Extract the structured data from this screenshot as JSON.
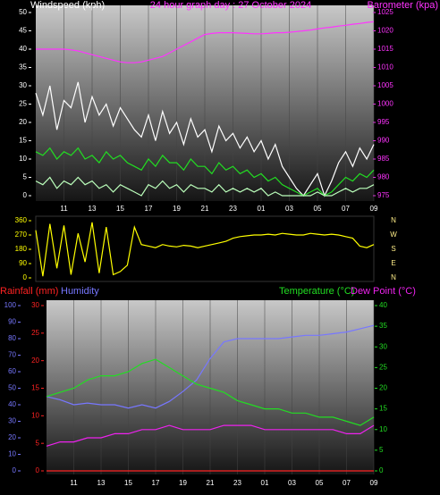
{
  "chart_data": [
    {
      "type": "line",
      "title": "24 hour graph day : 27 October 2024",
      "y_label": "Windspeed (kph)",
      "y2_label": "Barometer (kpa)",
      "y_color": "#ffffff",
      "y2_color": "#ff33ff",
      "x": [
        0,
        0.5,
        1,
        1.5,
        2,
        2.5,
        3,
        3.5,
        4,
        4.5,
        5,
        5.5,
        6,
        6.5,
        7,
        7.5,
        8,
        8.5,
        9,
        9.5,
        10,
        10.5,
        11,
        11.5,
        12,
        12.5,
        13,
        13.5,
        14,
        14.5,
        15,
        15.5,
        16,
        16.5,
        17,
        17.5,
        18,
        18.5,
        19,
        19.5,
        20,
        20.5,
        21,
        21.5,
        22,
        22.5,
        23,
        23.5,
        24
      ],
      "xlim": [
        0,
        24
      ],
      "xticks": [
        {
          "value": 2,
          "label": "11"
        },
        {
          "value": 4,
          "label": "13"
        },
        {
          "value": 6,
          "label": "15"
        },
        {
          "value": 8,
          "label": "17"
        },
        {
          "value": 10,
          "label": "19"
        },
        {
          "value": 12,
          "label": "21"
        },
        {
          "value": 14,
          "label": "23"
        },
        {
          "value": 16,
          "label": "01"
        },
        {
          "value": 18,
          "label": "03"
        },
        {
          "value": 20,
          "label": "05"
        },
        {
          "value": 22,
          "label": "07"
        },
        {
          "value": 24,
          "label": "09"
        }
      ],
      "ylim": [
        0,
        50
      ],
      "yticks": [
        0,
        5,
        10,
        15,
        20,
        25,
        30,
        35,
        40,
        45,
        50
      ],
      "y2lim": [
        975,
        1025
      ],
      "y2ticks": [
        975,
        980,
        985,
        990,
        995,
        1000,
        1005,
        1010,
        1015,
        1020,
        1025
      ],
      "series": [
        {
          "color": "#ffffff",
          "values": [
            28,
            22,
            30,
            18,
            26,
            24,
            31,
            20,
            27,
            22,
            25,
            19,
            24,
            21,
            18,
            16,
            22,
            15,
            23,
            17,
            20,
            14,
            21,
            16,
            18,
            12,
            19,
            15,
            17,
            13,
            16,
            12,
            15,
            10,
            14,
            8,
            5,
            2,
            0,
            3,
            6,
            0,
            4,
            9,
            12,
            8,
            13,
            10,
            14
          ]
        },
        {
          "color": "#22dd22",
          "values": [
            12,
            11,
            13,
            10,
            12,
            11,
            13,
            10,
            11,
            9,
            12,
            10,
            11,
            9,
            8,
            7,
            10,
            8,
            11,
            9,
            9,
            7,
            10,
            8,
            8,
            6,
            9,
            7,
            8,
            6,
            7,
            5,
            6,
            4,
            5,
            3,
            2,
            1,
            0,
            1,
            2,
            0,
            1,
            3,
            5,
            4,
            6,
            5,
            7
          ]
        },
        {
          "color": "#bbffbb",
          "values": [
            4,
            3,
            5,
            2,
            4,
            3,
            5,
            3,
            4,
            2,
            3,
            1,
            3,
            2,
            1,
            0,
            3,
            2,
            4,
            2,
            3,
            1,
            3,
            2,
            2,
            1,
            3,
            1,
            2,
            1,
            2,
            1,
            2,
            0,
            1,
            0,
            0,
            0,
            0,
            0,
            1,
            0,
            0,
            1,
            2,
            1,
            2,
            2,
            3
          ]
        },
        {
          "color": "#ff33ff",
          "axis": "y2",
          "values": [
            1015,
            1015,
            1015,
            1015,
            1015,
            1014.8,
            1014.5,
            1014,
            1013.5,
            1013,
            1012.5,
            1012,
            1011.5,
            1011.3,
            1011.3,
            1011.5,
            1012,
            1012.5,
            1013,
            1014,
            1015,
            1016,
            1017,
            1018,
            1019,
            1019.3,
            1019.5,
            1019.5,
            1019.5,
            1019.4,
            1019.3,
            1019.2,
            1019.2,
            1019.3,
            1019.5,
            1019.5,
            1019.6,
            1019.8,
            1020,
            1020.2,
            1020.5,
            1020.8,
            1021,
            1021.3,
            1021.5,
            1021.8,
            1022,
            1022.3,
            1022.5
          ]
        }
      ]
    },
    {
      "type": "line",
      "y_color": "#ffff00",
      "y2_color": "#ffee88",
      "x": [
        0,
        0.5,
        1,
        1.5,
        2,
        2.5,
        3,
        3.5,
        4,
        4.5,
        5,
        5.5,
        6,
        6.5,
        7,
        7.5,
        8,
        8.5,
        9,
        9.5,
        10,
        10.5,
        11,
        11.5,
        12,
        12.5,
        13,
        13.5,
        14,
        14.5,
        15,
        15.5,
        16,
        16.5,
        17,
        17.5,
        18,
        18.5,
        19,
        19.5,
        20,
        20.5,
        21,
        21.5,
        22,
        22.5,
        23,
        23.5,
        24
      ],
      "xlim": [
        0,
        24
      ],
      "ylim": [
        0,
        360
      ],
      "yticks": [
        0,
        90,
        180,
        270,
        360
      ],
      "y2lim": [
        0,
        360
      ],
      "y2ticks": [
        {
          "value": 360,
          "label": "N"
        },
        {
          "value": 270,
          "label": "W"
        },
        {
          "value": 180,
          "label": "S"
        },
        {
          "value": 90,
          "label": "E"
        },
        {
          "value": 0,
          "label": "N"
        }
      ],
      "series": [
        {
          "color": "#ffff00",
          "values": [
            300,
            10,
            340,
            60,
            330,
            20,
            280,
            100,
            350,
            30,
            320,
            20,
            40,
            80,
            320,
            210,
            200,
            190,
            210,
            200,
            195,
            205,
            200,
            190,
            200,
            210,
            220,
            230,
            250,
            260,
            265,
            270,
            270,
            275,
            270,
            280,
            275,
            270,
            270,
            280,
            275,
            270,
            275,
            270,
            260,
            250,
            200,
            190,
            210
          ]
        }
      ]
    },
    {
      "type": "line",
      "y_label": "Rainfall (mm)",
      "y3_label": "Humidity",
      "y2_label": "Temperature (°C)",
      "y2_label_b": "Dew Point (°C)",
      "y_color": "#ff2222",
      "y2_color": "#22dd22",
      "y3_color": "#7777ff",
      "x": [
        0,
        1,
        2,
        3,
        4,
        5,
        6,
        7,
        8,
        9,
        10,
        11,
        12,
        13,
        14,
        15,
        16,
        17,
        18,
        19,
        20,
        21,
        22,
        23,
        24
      ],
      "xlim": [
        0,
        24
      ],
      "xticks": [
        {
          "value": 2,
          "label": "11"
        },
        {
          "value": 4,
          "label": "13"
        },
        {
          "value": 6,
          "label": "15"
        },
        {
          "value": 8,
          "label": "17"
        },
        {
          "value": 10,
          "label": "19"
        },
        {
          "value": 12,
          "label": "21"
        },
        {
          "value": 14,
          "label": "23"
        },
        {
          "value": 16,
          "label": "01"
        },
        {
          "value": 18,
          "label": "03"
        },
        {
          "value": 20,
          "label": "05"
        },
        {
          "value": 22,
          "label": "07"
        },
        {
          "value": 24,
          "label": "09"
        }
      ],
      "ylim": [
        0,
        30
      ],
      "yticks": [
        0,
        5,
        10,
        15,
        20,
        25,
        30
      ],
      "y2lim": [
        0,
        40
      ],
      "y2ticks": [
        0,
        5,
        10,
        15,
        20,
        25,
        30,
        35,
        40
      ],
      "y3lim": [
        0,
        100
      ],
      "y3ticks": [
        0,
        10,
        20,
        30,
        40,
        50,
        60,
        70,
        80,
        90,
        100
      ],
      "series": [
        {
          "color": "#7777ff",
          "axis": "y3",
          "values": [
            45,
            43,
            40,
            41,
            40,
            40,
            38,
            40,
            38,
            42,
            48,
            55,
            68,
            78,
            80,
            80,
            80,
            80,
            81,
            82,
            82,
            83,
            84,
            86,
            88
          ]
        },
        {
          "color": "#22dd22",
          "axis": "y2",
          "values": [
            18,
            19,
            20,
            22,
            23,
            23,
            24,
            26,
            27,
            25,
            23,
            21,
            20,
            19,
            17,
            16,
            15,
            15,
            14,
            14,
            13,
            13,
            12,
            11,
            13
          ]
        },
        {
          "color": "#ee22ee",
          "axis": "y2",
          "values": [
            6,
            7,
            7,
            8,
            8,
            9,
            9,
            10,
            10,
            11,
            10,
            10,
            10,
            11,
            11,
            11,
            10,
            10,
            10,
            10,
            10,
            10,
            9,
            9,
            11
          ]
        },
        {
          "color": "#ff2222",
          "values": [
            0,
            0,
            0,
            0,
            0,
            0,
            0,
            0,
            0,
            0,
            0,
            0,
            0,
            0,
            0,
            0,
            0,
            0,
            0,
            0,
            0,
            0,
            0,
            0,
            0
          ]
        }
      ]
    }
  ]
}
